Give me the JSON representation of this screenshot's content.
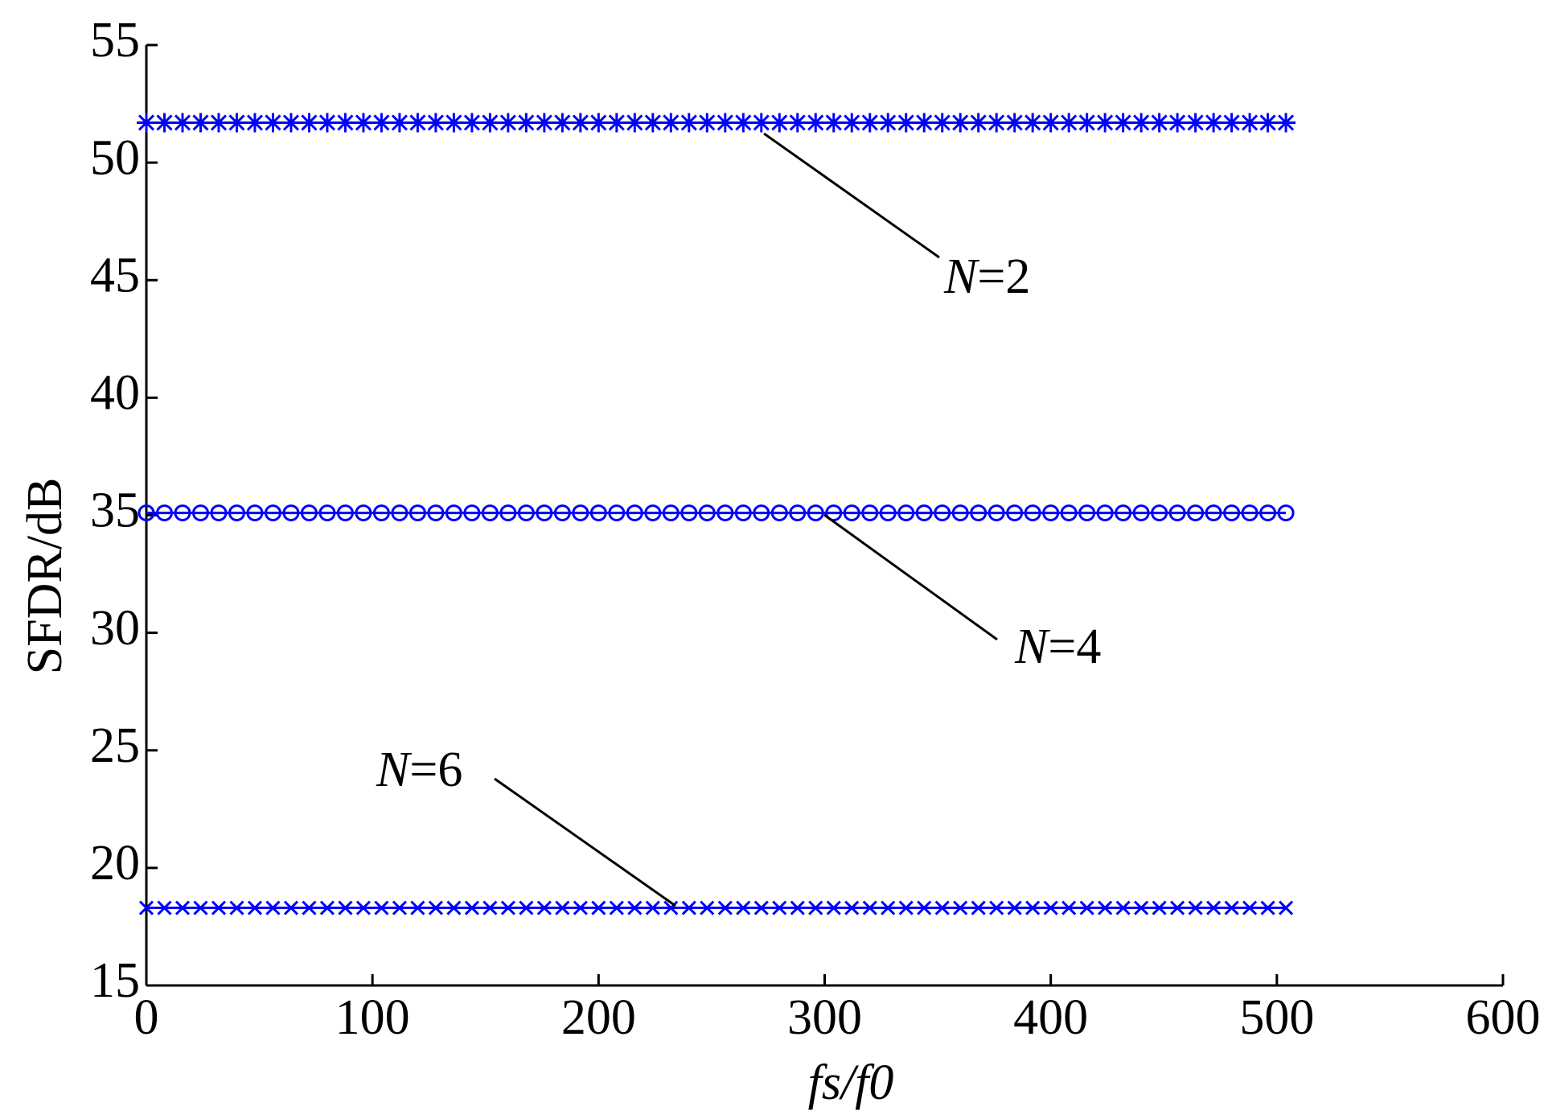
{
  "chart_data": {
    "type": "line",
    "x_label": "fs/f0",
    "y_label": "SFDR/dB",
    "x": [
      0,
      8,
      16,
      24,
      32,
      40,
      48,
      56,
      64,
      72,
      80,
      88,
      96,
      104,
      112,
      120,
      128,
      136,
      144,
      152,
      160,
      168,
      176,
      184,
      192,
      200,
      208,
      216,
      224,
      232,
      240,
      248,
      256,
      264,
      272,
      280,
      288,
      296,
      304,
      312,
      320,
      328,
      336,
      344,
      352,
      360,
      368,
      376,
      384,
      392,
      400,
      408,
      416,
      424,
      432,
      440,
      448,
      456,
      464,
      472,
      480,
      488,
      496,
      504
    ],
    "series": [
      {
        "name": "N=2",
        "color": "#0000ff",
        "marker": "asterisk",
        "values": [
          51.7,
          51.7,
          51.7,
          51.7,
          51.7,
          51.7,
          51.7,
          51.7,
          51.7,
          51.7,
          51.7,
          51.7,
          51.7,
          51.7,
          51.7,
          51.7,
          51.7,
          51.7,
          51.7,
          51.7,
          51.7,
          51.7,
          51.7,
          51.7,
          51.7,
          51.7,
          51.7,
          51.7,
          51.7,
          51.7,
          51.7,
          51.7,
          51.7,
          51.7,
          51.7,
          51.7,
          51.7,
          51.7,
          51.7,
          51.7,
          51.7,
          51.7,
          51.7,
          51.7,
          51.7,
          51.7,
          51.7,
          51.7,
          51.7,
          51.7,
          51.7,
          51.7,
          51.7,
          51.7,
          51.7,
          51.7,
          51.7,
          51.7,
          51.7,
          51.7,
          51.7,
          51.7,
          51.7,
          51.7
        ]
      },
      {
        "name": "N=4",
        "color": "#0000ff",
        "marker": "circle",
        "values": [
          35.1,
          35.1,
          35.1,
          35.1,
          35.1,
          35.1,
          35.1,
          35.1,
          35.1,
          35.1,
          35.1,
          35.1,
          35.1,
          35.1,
          35.1,
          35.1,
          35.1,
          35.1,
          35.1,
          35.1,
          35.1,
          35.1,
          35.1,
          35.1,
          35.1,
          35.1,
          35.1,
          35.1,
          35.1,
          35.1,
          35.1,
          35.1,
          35.1,
          35.1,
          35.1,
          35.1,
          35.1,
          35.1,
          35.1,
          35.1,
          35.1,
          35.1,
          35.1,
          35.1,
          35.1,
          35.1,
          35.1,
          35.1,
          35.1,
          35.1,
          35.1,
          35.1,
          35.1,
          35.1,
          35.1,
          35.1,
          35.1,
          35.1,
          35.1,
          35.1,
          35.1,
          35.1,
          35.1,
          35.1
        ]
      },
      {
        "name": "N=6",
        "color": "#0000ff",
        "marker": "x",
        "values": [
          18.3,
          18.3,
          18.3,
          18.3,
          18.3,
          18.3,
          18.3,
          18.3,
          18.3,
          18.3,
          18.3,
          18.3,
          18.3,
          18.3,
          18.3,
          18.3,
          18.3,
          18.3,
          18.3,
          18.3,
          18.3,
          18.3,
          18.3,
          18.3,
          18.3,
          18.3,
          18.3,
          18.3,
          18.3,
          18.3,
          18.3,
          18.3,
          18.3,
          18.3,
          18.3,
          18.3,
          18.3,
          18.3,
          18.3,
          18.3,
          18.3,
          18.3,
          18.3,
          18.3,
          18.3,
          18.3,
          18.3,
          18.3,
          18.3,
          18.3,
          18.3,
          18.3,
          18.3,
          18.3,
          18.3,
          18.3,
          18.3,
          18.3,
          18.3,
          18.3,
          18.3,
          18.3,
          18.3,
          18.3
        ]
      }
    ],
    "xlim": [
      0,
      600
    ],
    "xticks": [
      0,
      100,
      200,
      300,
      400,
      500,
      600
    ],
    "ylim": [
      15,
      55
    ],
    "yticks": [
      15,
      20,
      25,
      30,
      35,
      40,
      45,
      50,
      55
    ],
    "grid": false
  }
}
